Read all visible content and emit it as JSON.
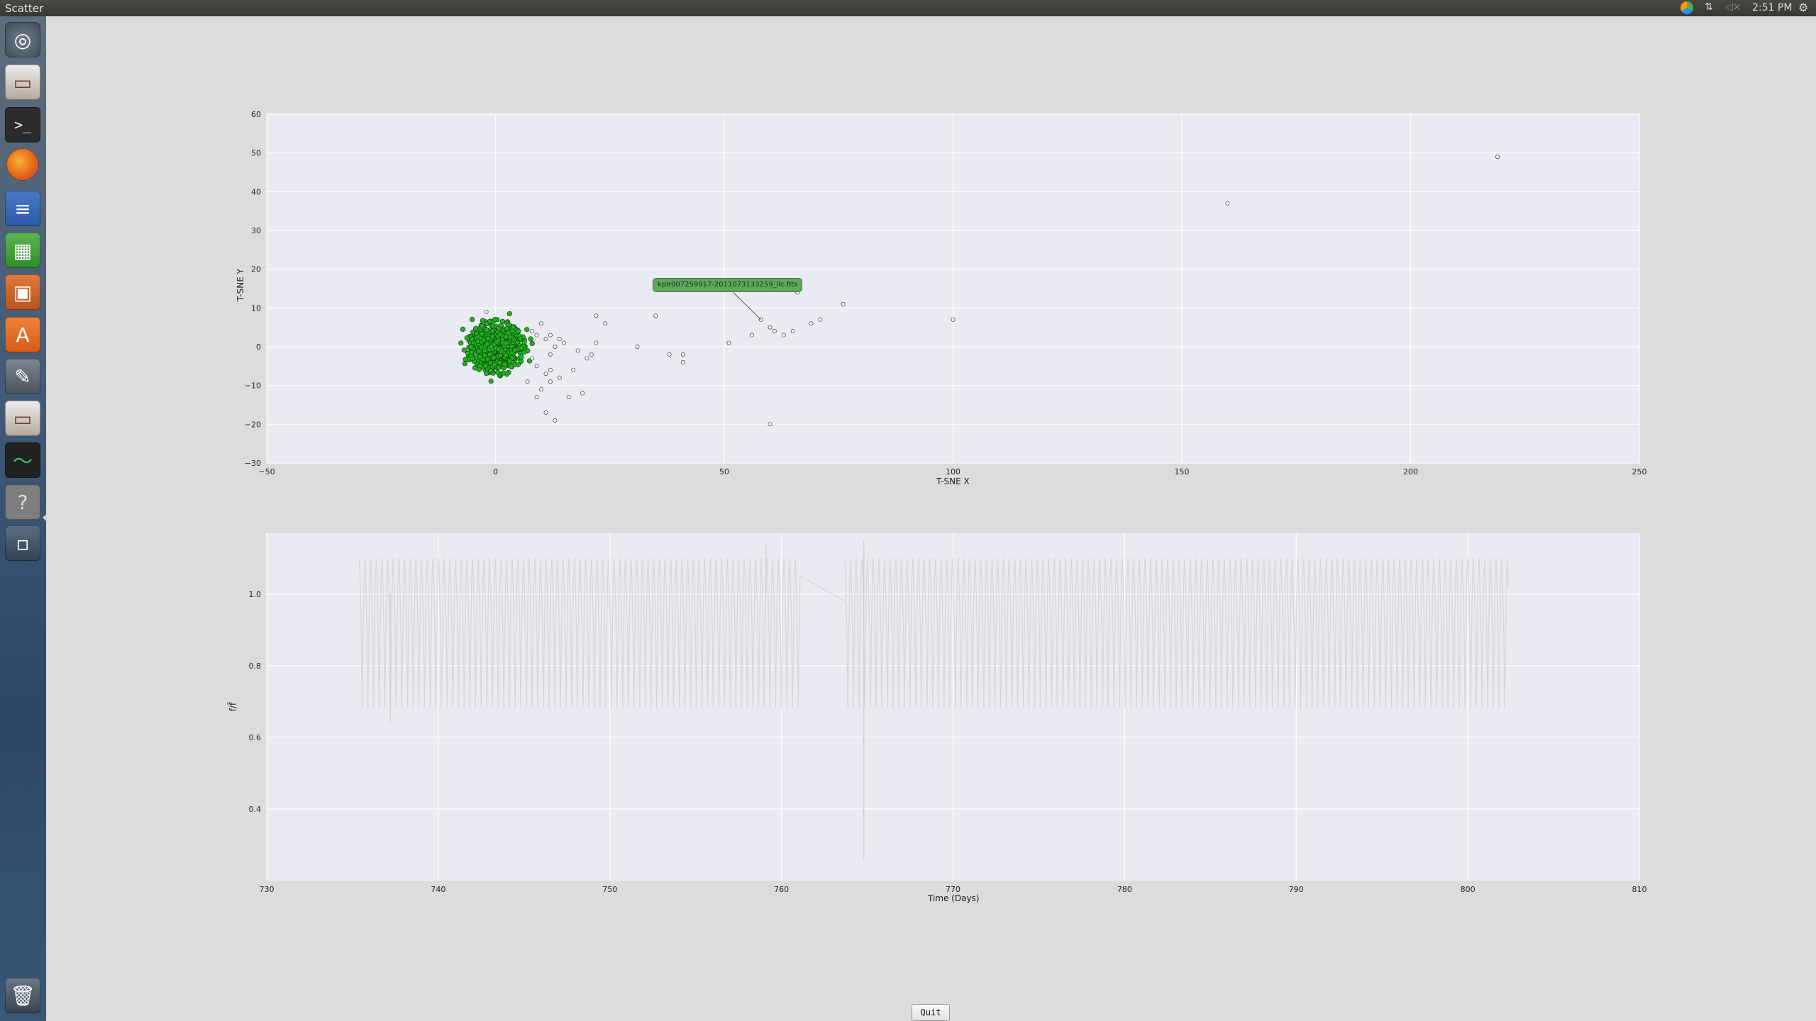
{
  "window": {
    "title": "Scatter"
  },
  "tray": {
    "clock": "2:51 PM",
    "sync_icon": "sync-icon",
    "network_icon": "network-icon",
    "sound_icon": "sound-muted-icon",
    "settings_icon": "gear-icon"
  },
  "launcher": {
    "items": [
      "dash-home-icon",
      "files-icon",
      "terminal-icon",
      "firefox-icon",
      "writer-icon",
      "calc-icon",
      "impress-icon",
      "software-center-icon",
      "system-settings-icon",
      "files-icon",
      "system-monitor-icon",
      "help-icon",
      "workspace-switcher-icon",
      "trash-icon"
    ]
  },
  "annotation": {
    "text": "kplr007259917-2011073133259_llc.fits"
  },
  "quit_button": {
    "label": "Quit"
  },
  "chart_data": [
    {
      "type": "scatter",
      "title": "",
      "xlabel": "T-SNE X",
      "ylabel": "T-SNE Y",
      "xlim": [
        -50,
        250
      ],
      "ylim": [
        -30,
        60
      ],
      "xticks": [
        "−50",
        "0",
        "50",
        "100",
        "150",
        "200",
        "250"
      ],
      "yticks": [
        "−30",
        "−20",
        "−10",
        "0",
        "10",
        "20",
        "30",
        "40",
        "50",
        "60"
      ],
      "grid": true,
      "background": "#eaeaf2",
      "colors": {
        "highlight": "#22b022",
        "normal": "#ffffff",
        "edge": "#333333"
      },
      "cluster": {
        "center": [
          0,
          0
        ],
        "spread": [
          5,
          6
        ],
        "count": 600,
        "color": "green"
      },
      "outliers": [
        [
          -2,
          9
        ],
        [
          8,
          4
        ],
        [
          10,
          6
        ],
        [
          9,
          3
        ],
        [
          11,
          2
        ],
        [
          12,
          3
        ],
        [
          13,
          0
        ],
        [
          12,
          -2
        ],
        [
          14,
          2
        ],
        [
          15,
          1
        ],
        [
          8,
          -3
        ],
        [
          9,
          -5
        ],
        [
          11,
          -7
        ],
        [
          12,
          -9
        ],
        [
          10,
          -11
        ],
        [
          9,
          -13
        ],
        [
          11,
          -17
        ],
        [
          13,
          -19
        ],
        [
          12,
          -6
        ],
        [
          14,
          -8
        ],
        [
          18,
          -1
        ],
        [
          20,
          -3
        ],
        [
          21,
          -2
        ],
        [
          22,
          1
        ],
        [
          22,
          8
        ],
        [
          24,
          6
        ],
        [
          17,
          -6
        ],
        [
          16,
          -13
        ],
        [
          19,
          -12
        ],
        [
          31,
          0
        ],
        [
          35,
          8
        ],
        [
          38,
          -2
        ],
        [
          41,
          -2
        ],
        [
          41,
          -4
        ],
        [
          51,
          1
        ],
        [
          56,
          3
        ],
        [
          58,
          7
        ],
        [
          60,
          5
        ],
        [
          61,
          4
        ],
        [
          63,
          3
        ],
        [
          65,
          4
        ],
        [
          66,
          14
        ],
        [
          69,
          6
        ],
        [
          71,
          7
        ],
        [
          76,
          11
        ],
        [
          100,
          7
        ],
        [
          160,
          37
        ],
        [
          219,
          49
        ],
        [
          60,
          -20
        ],
        [
          7,
          -9
        ]
      ]
    },
    {
      "type": "line",
      "title": "",
      "xlabel": "Time (Days)",
      "ylabel": "f/f̄",
      "xlim": [
        730,
        810
      ],
      "ylim": [
        0.2,
        1.17
      ],
      "xticks": [
        "730",
        "740",
        "750",
        "760",
        "770",
        "780",
        "790",
        "800",
        "810"
      ],
      "yticks": [
        "0.4",
        "0.6",
        "0.8",
        "1.0"
      ],
      "grid": true,
      "background": "#eaeaf2",
      "series": [
        {
          "color": "#d6d6d6",
          "segments": [
            {
              "start": 735.4,
              "end": 761.1
            },
            {
              "start": 763.7,
              "end": 802.4
            }
          ],
          "period": 0.33,
          "min": 0.68,
          "max": 1.1,
          "spikes": [
            {
              "x": 737.2,
              "y": 0.64
            },
            {
              "x": 759.1,
              "y": 1.14
            },
            {
              "x": 764.8,
              "y": 0.26
            },
            {
              "x": 764.8,
              "y": 1.15
            }
          ],
          "gap_line": [
            [
              761.1,
              1.05
            ],
            [
              763.7,
              0.98
            ]
          ]
        }
      ]
    }
  ]
}
